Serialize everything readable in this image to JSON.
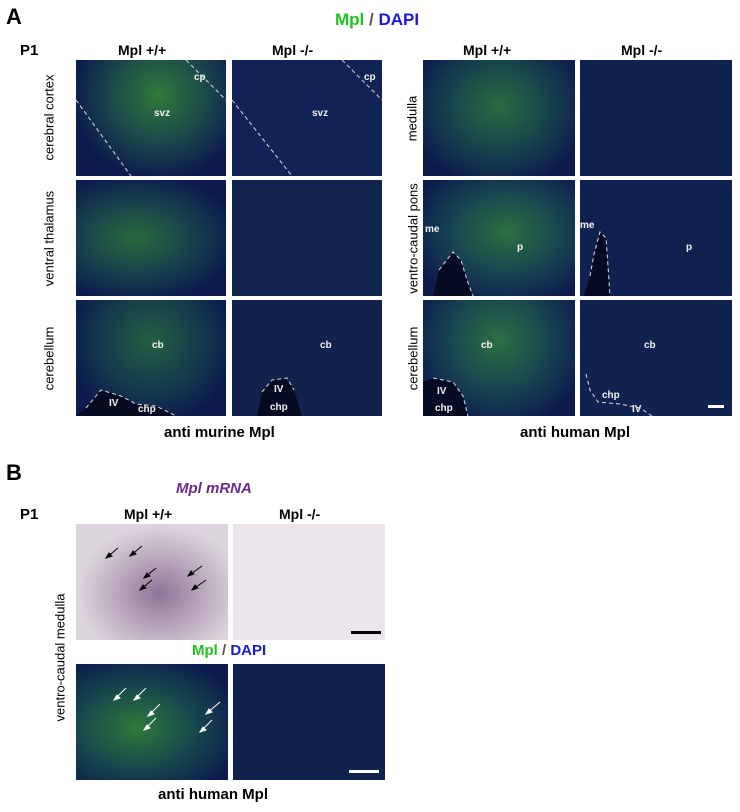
{
  "panel_a": {
    "letter": "A",
    "legend_green": "Mpl",
    "legend_sep": " / ",
    "legend_blue": "DAPI",
    "age": "P1",
    "left_cols": [
      "Mpl +/+",
      "Mpl -/-"
    ],
    "right_cols": [
      "Mpl +/+",
      "Mpl -/-"
    ],
    "left_rows": [
      "cerebral cortex",
      "ventral thalamus",
      "cerebellum"
    ],
    "right_rows": [
      "medulla",
      "ventro-caudal pons",
      "cerebellum"
    ],
    "left_caption": "anti murine Mpl",
    "right_caption": "anti human Mpl",
    "labels": {
      "cp": "cp",
      "svz": "svz",
      "cb": "cb",
      "iv": "IV",
      "chp": "chp",
      "me": "me",
      "p": "p"
    }
  },
  "panel_b": {
    "letter": "B",
    "mrna_title": "Mpl mRNA",
    "age": "P1",
    "cols": [
      "Mpl +/+",
      "Mpl -/-"
    ],
    "legend_green": "Mpl",
    "legend_sep": " / ",
    "legend_blue": "DAPI",
    "row_label": "ventro-caudal medulla",
    "caption": "anti human Mpl"
  },
  "colors": {
    "mpl_green": "#1ec41e",
    "dapi_blue": "#1a1adb",
    "mrna_purple": "#6a2a8a",
    "tissue_blue": "#0b1446",
    "ish_background": "#ebe5ea"
  }
}
